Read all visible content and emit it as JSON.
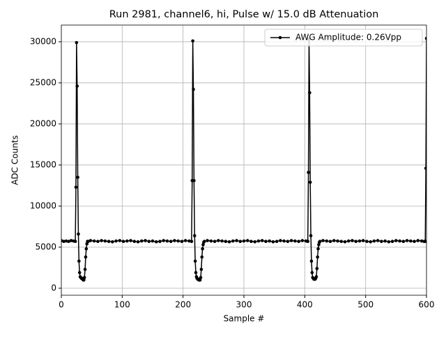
{
  "chart_data": {
    "type": "line",
    "title": "Run 2981, channel6, hi, Pulse w/ 15.0 dB Attenuation",
    "x_label": "Sample #",
    "y_label": "ADC Counts",
    "xlim": [
      0,
      600
    ],
    "ylim": [
      -850,
      32030
    ],
    "xticks": [
      0,
      100,
      200,
      300,
      400,
      500,
      600
    ],
    "yticks": [
      0,
      5000,
      10000,
      15000,
      20000,
      25000,
      30000
    ],
    "grid": true,
    "legend": "upper right",
    "x": [
      0,
      4,
      8,
      12,
      16,
      20,
      23,
      24,
      25,
      26,
      27,
      28,
      29,
      30,
      31,
      32,
      33,
      34,
      35,
      36,
      37,
      38,
      39,
      40,
      41,
      42,
      43,
      44,
      48,
      54,
      60,
      66,
      72,
      78,
      84,
      90,
      96,
      102,
      108,
      114,
      120,
      126,
      132,
      138,
      144,
      150,
      156,
      162,
      168,
      174,
      180,
      186,
      192,
      198,
      204,
      210,
      214,
      215,
      216,
      217,
      218,
      219,
      220,
      221,
      222,
      223,
      224,
      225,
      226,
      227,
      228,
      229,
      230,
      231,
      232,
      233,
      234,
      235,
      240,
      246,
      252,
      258,
      264,
      270,
      276,
      282,
      288,
      294,
      300,
      306,
      312,
      318,
      324,
      330,
      336,
      342,
      348,
      354,
      360,
      366,
      372,
      378,
      384,
      390,
      396,
      402,
      405,
      406,
      407,
      408,
      409,
      410,
      411,
      412,
      413,
      414,
      415,
      416,
      417,
      418,
      419,
      420,
      421,
      422,
      423,
      424,
      425,
      430,
      436,
      442,
      448,
      454,
      460,
      466,
      472,
      478,
      484,
      490,
      496,
      502,
      508,
      514,
      520,
      526,
      532,
      538,
      544,
      550,
      556,
      562,
      568,
      574,
      580,
      586,
      592,
      596,
      598,
      599,
      600
    ],
    "series": [
      {
        "name": "AWG Amplitude: 0.26Vpp",
        "color": "#000000",
        "values": [
          5800,
          5700,
          5750,
          5700,
          5800,
          5750,
          5700,
          12300,
          29900,
          24600,
          13500,
          6600,
          3300,
          1900,
          1400,
          1300,
          1200,
          1200,
          1100,
          1000,
          1000,
          1300,
          2300,
          3800,
          4800,
          5400,
          5700,
          5700,
          5800,
          5750,
          5700,
          5800,
          5750,
          5700,
          5650,
          5750,
          5800,
          5700,
          5750,
          5800,
          5700,
          5650,
          5750,
          5800,
          5700,
          5750,
          5650,
          5700,
          5800,
          5750,
          5700,
          5800,
          5750,
          5700,
          5800,
          5750,
          5700,
          13100,
          30100,
          24200,
          13100,
          6400,
          3300,
          1900,
          1400,
          1200,
          1100,
          1100,
          1000,
          1000,
          1000,
          1300,
          2300,
          3800,
          4800,
          5300,
          5600,
          5700,
          5800,
          5750,
          5700,
          5800,
          5750,
          5700,
          5650,
          5750,
          5800,
          5700,
          5750,
          5800,
          5700,
          5650,
          5750,
          5800,
          5700,
          5750,
          5650,
          5700,
          5800,
          5750,
          5700,
          5800,
          5750,
          5700,
          5800,
          5750,
          5700,
          14100,
          30300,
          23800,
          12900,
          6400,
          3300,
          1900,
          1300,
          1200,
          1100,
          1100,
          1100,
          1200,
          1400,
          2400,
          3800,
          4800,
          5300,
          5600,
          5700,
          5800,
          5750,
          5700,
          5800,
          5750,
          5700,
          5650,
          5750,
          5800,
          5700,
          5750,
          5800,
          5700,
          5650,
          5750,
          5800,
          5700,
          5750,
          5650,
          5700,
          5800,
          5750,
          5700,
          5800,
          5750,
          5700,
          5800,
          5750,
          5700,
          5700,
          14600,
          30400
        ]
      }
    ]
  }
}
